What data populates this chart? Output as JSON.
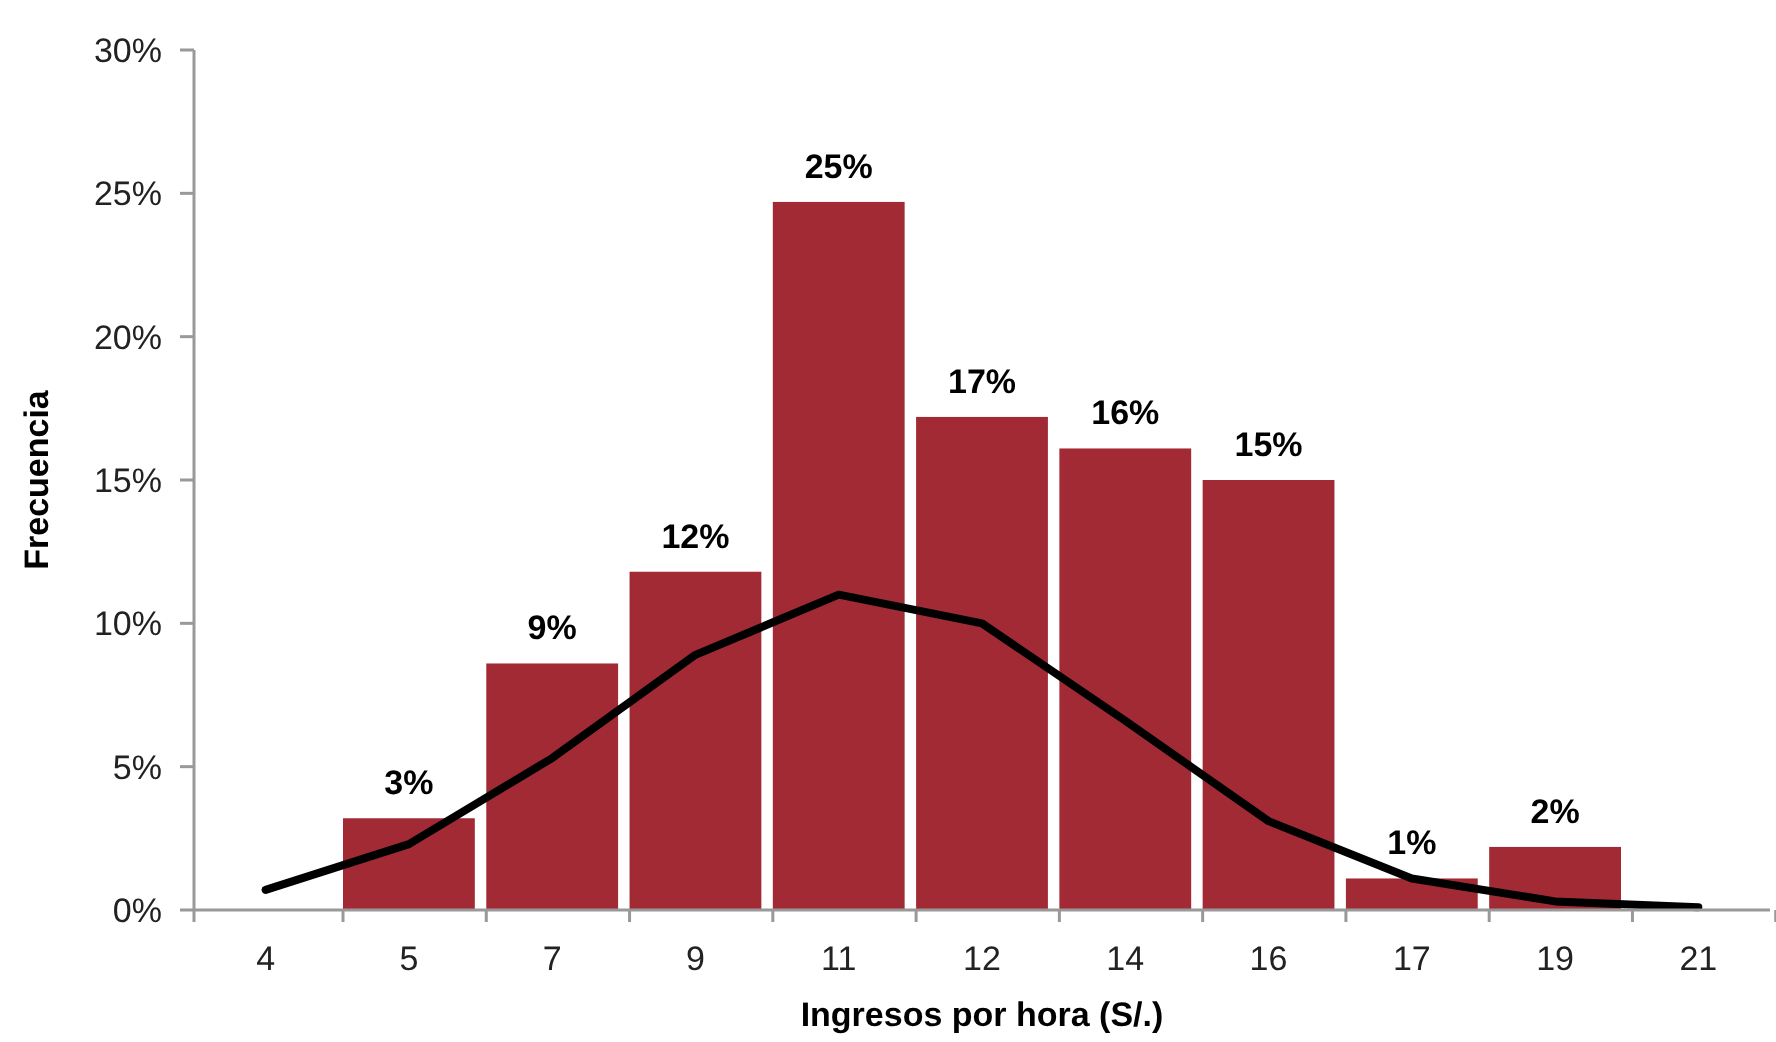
{
  "chart_data": {
    "type": "bar",
    "xlabel": "Ingresos por hora (S/.)",
    "ylabel": "Frecuencia",
    "categories": [
      "4",
      "5",
      "7",
      "9",
      "11",
      "12",
      "14",
      "16",
      "17",
      "19",
      "21"
    ],
    "ylim": [
      0,
      30
    ],
    "yticks": [
      {
        "value": 0,
        "label": "0%"
      },
      {
        "value": 5,
        "label": "5%"
      },
      {
        "value": 10,
        "label": "10%"
      },
      {
        "value": 15,
        "label": "15%"
      },
      {
        "value": 20,
        "label": "20%"
      },
      {
        "value": 25,
        "label": "25%"
      },
      {
        "value": 30,
        "label": "30%"
      }
    ],
    "series": [
      {
        "color": "#a12a34",
        "values": [
          null,
          3.2,
          8.6,
          11.8,
          24.7,
          17.2,
          16.1,
          15.0,
          1.1,
          2.2,
          null
        ],
        "value_labels": [
          null,
          "3%",
          "9%",
          "12%",
          "25%",
          "17%",
          "16%",
          "15%",
          "1%",
          "2%",
          null
        ]
      },
      {
        "type": "line",
        "color": "#000000",
        "values": [
          0.7,
          2.3,
          5.3,
          8.9,
          11.0,
          10.0,
          6.6,
          3.1,
          1.1,
          0.3,
          0.1
        ]
      }
    ]
  }
}
